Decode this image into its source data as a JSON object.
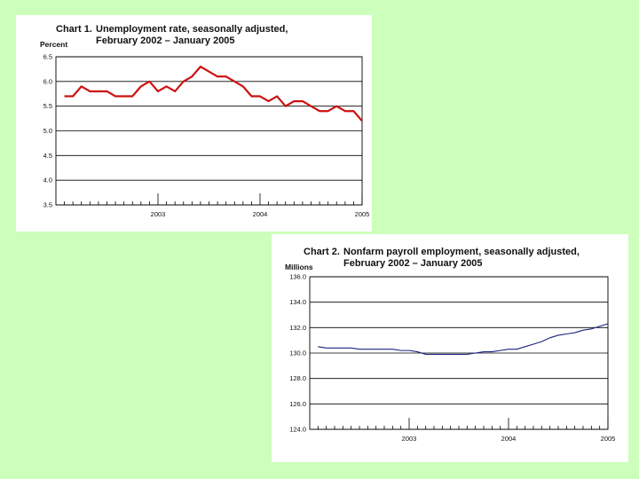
{
  "chart_data": [
    {
      "type": "line",
      "title_num": "Chart 1.",
      "title_line1": "Unemployment rate, seasonally adjusted,",
      "title_line2": "February 2002 – January 2005",
      "ylabel": "Percent",
      "ylim": [
        3.5,
        6.5
      ],
      "y_ticks": [
        "6.5",
        "6.0",
        "5.5",
        "5.0",
        "4.5",
        "4.0",
        "3.5"
      ],
      "x_tick_labels": [
        "2003",
        "2004",
        "2005"
      ],
      "x_range": [
        "2002-01",
        "2005-01"
      ],
      "x": [
        "2002-02",
        "2002-03",
        "2002-04",
        "2002-05",
        "2002-06",
        "2002-07",
        "2002-08",
        "2002-09",
        "2002-10",
        "2002-11",
        "2002-12",
        "2003-01",
        "2003-02",
        "2003-03",
        "2003-04",
        "2003-05",
        "2003-06",
        "2003-07",
        "2003-08",
        "2003-09",
        "2003-10",
        "2003-11",
        "2003-12",
        "2004-01",
        "2004-02",
        "2004-03",
        "2004-04",
        "2004-05",
        "2004-06",
        "2004-07",
        "2004-08",
        "2004-09",
        "2004-10",
        "2004-11",
        "2004-12",
        "2005-01"
      ],
      "series": [
        {
          "color": "#cc1111",
          "values": [
            5.7,
            5.7,
            5.9,
            5.8,
            5.8,
            5.8,
            5.7,
            5.7,
            5.7,
            5.9,
            6.0,
            5.8,
            5.9,
            5.8,
            6.0,
            6.1,
            6.3,
            6.2,
            6.1,
            6.1,
            6.0,
            5.9,
            5.7,
            5.7,
            5.6,
            5.7,
            5.5,
            5.6,
            5.6,
            5.5,
            5.4,
            5.4,
            5.5,
            5.4,
            5.4,
            5.2
          ]
        }
      ],
      "grid": true
    },
    {
      "type": "line",
      "title_num": "Chart 2.",
      "title_line1": "Nonfarm payroll employment, seasonally adjusted,",
      "title_line2": "February  2002 – January 2005",
      "ylabel": "Millions",
      "ylim": [
        124.0,
        136.0
      ],
      "y_ticks": [
        "136.0",
        "134.0",
        "132.0",
        "130.0",
        "128.0",
        "126.0",
        "124.0"
      ],
      "x_tick_labels": [
        "2003",
        "2004",
        "2005"
      ],
      "x_range": [
        "2002-01",
        "2005-01"
      ],
      "x": [
        "2002-02",
        "2002-03",
        "2002-04",
        "2002-05",
        "2002-06",
        "2002-07",
        "2002-08",
        "2002-09",
        "2002-10",
        "2002-11",
        "2002-12",
        "2003-01",
        "2003-02",
        "2003-03",
        "2003-04",
        "2003-05",
        "2003-06",
        "2003-07",
        "2003-08",
        "2003-09",
        "2003-10",
        "2003-11",
        "2003-12",
        "2004-01",
        "2004-02",
        "2004-03",
        "2004-04",
        "2004-05",
        "2004-06",
        "2004-07",
        "2004-08",
        "2004-09",
        "2004-10",
        "2004-11",
        "2004-12",
        "2005-01"
      ],
      "series": [
        {
          "color": "#1a237e",
          "values": [
            130.5,
            130.4,
            130.4,
            130.4,
            130.4,
            130.3,
            130.3,
            130.3,
            130.3,
            130.3,
            130.2,
            130.2,
            130.1,
            129.9,
            129.9,
            129.9,
            129.9,
            129.9,
            129.9,
            130.0,
            130.1,
            130.1,
            130.2,
            130.3,
            130.3,
            130.5,
            130.7,
            130.9,
            131.2,
            131.4,
            131.5,
            131.6,
            131.8,
            131.9,
            132.1,
            132.3
          ]
        }
      ],
      "grid": true
    }
  ]
}
